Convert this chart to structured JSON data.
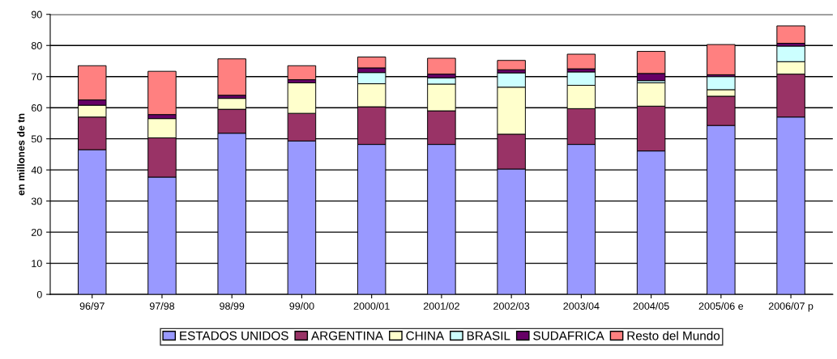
{
  "chart_data": {
    "type": "bar",
    "stacked": true,
    "ylabel": "en millones de tn",
    "categories": [
      "96/97",
      "97/98",
      "98/99",
      "99/00",
      "2000/01",
      "2001/02",
      "2002/03",
      "2003/04",
      "2004/05",
      "2005/06 e",
      "2006/07 p"
    ],
    "series": [
      {
        "name": "ESTADOS UNIDOS",
        "color": "#9999ff",
        "values": [
          46.5,
          37.7,
          51.8,
          49.3,
          48.2,
          48.2,
          40.3,
          48.2,
          46.1,
          54.3,
          57.0
        ]
      },
      {
        "name": "ARGENTINA",
        "color": "#993366",
        "values": [
          10.5,
          12.6,
          7.7,
          8.9,
          12.1,
          10.8,
          11.2,
          11.5,
          14.4,
          9.4,
          13.8
        ]
      },
      {
        "name": "CHINA",
        "color": "#ffffcc",
        "values": [
          3.8,
          6.2,
          3.5,
          9.8,
          7.4,
          8.6,
          15.1,
          7.5,
          7.5,
          2.1,
          4.0
        ]
      },
      {
        "name": "BRASIL",
        "color": "#ccffff",
        "values": [
          null,
          null,
          null,
          null,
          3.6,
          2.0,
          4.6,
          4.3,
          0.7,
          4.2,
          5.0
        ]
      },
      {
        "name": "SUDAFRICA",
        "color": "#660066",
        "values": [
          1.7,
          1.3,
          1.0,
          1.0,
          1.5,
          1.2,
          1.0,
          1.0,
          2.3,
          0.6,
          0.9
        ]
      },
      {
        "name": "Resto del Mundo",
        "color": "#ff8080",
        "values": [
          11.0,
          13.9,
          11.7,
          4.5,
          3.5,
          5.1,
          3.0,
          4.7,
          7.1,
          9.7,
          5.6
        ]
      }
    ],
    "ylim": [
      0,
      90
    ],
    "yticks": [
      0,
      10,
      20,
      30,
      40,
      50,
      60,
      70,
      80,
      90
    ],
    "grid": "y",
    "legend": "bottom"
  }
}
